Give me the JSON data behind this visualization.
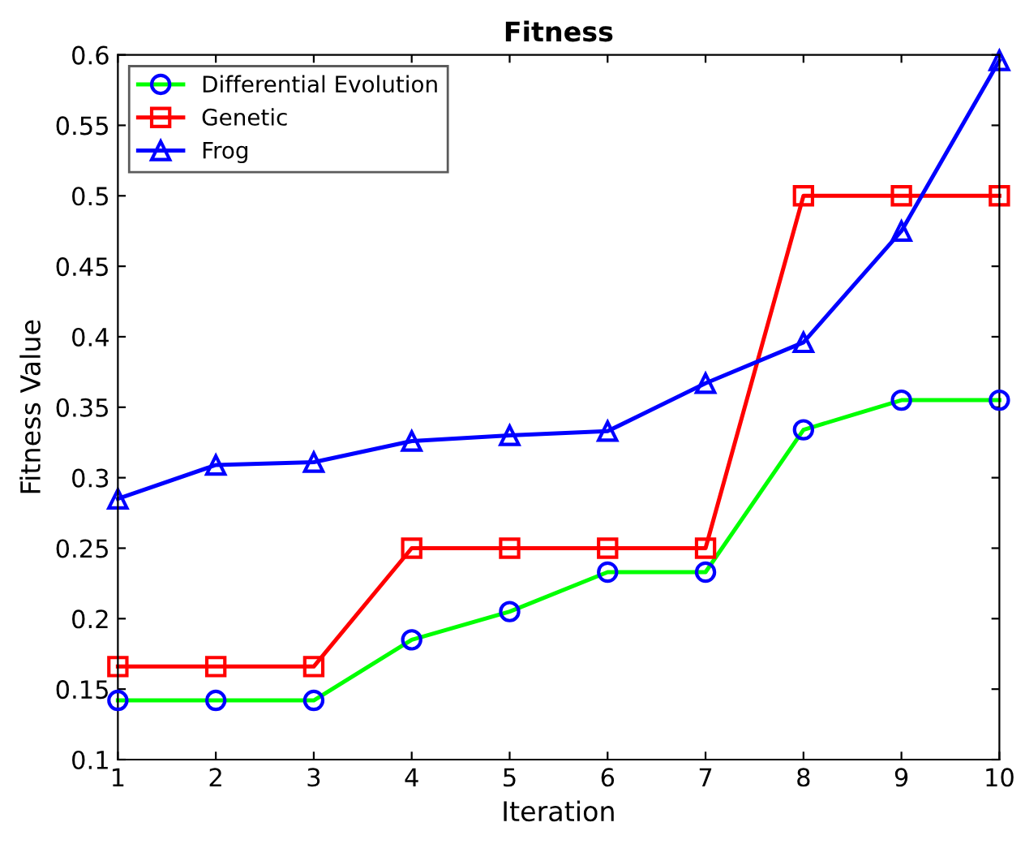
{
  "chart_data": {
    "type": "line",
    "title": "Fitness",
    "xlabel": "Iteration",
    "ylabel": "Fitness Value",
    "x": [
      1,
      2,
      3,
      4,
      5,
      6,
      7,
      8,
      9,
      10
    ],
    "series": [
      {
        "name": "Differential Evolution",
        "color": "#00ff00",
        "colors": [
          "#0000ff",
          "#0000ff",
          "#0000ff",
          "#0000ff",
          "#0000ff",
          "#0000ff",
          "#0000ff",
          "#0000ff",
          "#0000ff",
          "#0000ff"
        ],
        "marker": "circle",
        "values": [
          0.142,
          0.142,
          0.142,
          0.185,
          0.205,
          0.233,
          0.233,
          0.334,
          0.355,
          0.355
        ]
      },
      {
        "name": "Genetic",
        "color": "#ff0000",
        "marker": "square",
        "values": [
          0.166,
          0.166,
          0.166,
          0.25,
          0.25,
          0.25,
          0.25,
          0.5,
          0.5,
          0.5
        ]
      },
      {
        "name": "Frog",
        "color": "#0000ff",
        "marker": "triangle",
        "values": [
          0.285,
          0.309,
          0.311,
          0.326,
          0.33,
          0.333,
          0.367,
          0.396,
          0.475,
          0.596
        ]
      }
    ],
    "xlim": [
      1,
      10
    ],
    "xticks": [
      1,
      2,
      3,
      4,
      5,
      6,
      7,
      8,
      9,
      10
    ],
    "ylim": [
      0.1,
      0.6
    ],
    "yticks": [
      0.1,
      0.15,
      0.2,
      0.25,
      0.3,
      0.35,
      0.4,
      0.45,
      0.5,
      0.55,
      0.6
    ],
    "grid": false,
    "legend": "top left"
  }
}
